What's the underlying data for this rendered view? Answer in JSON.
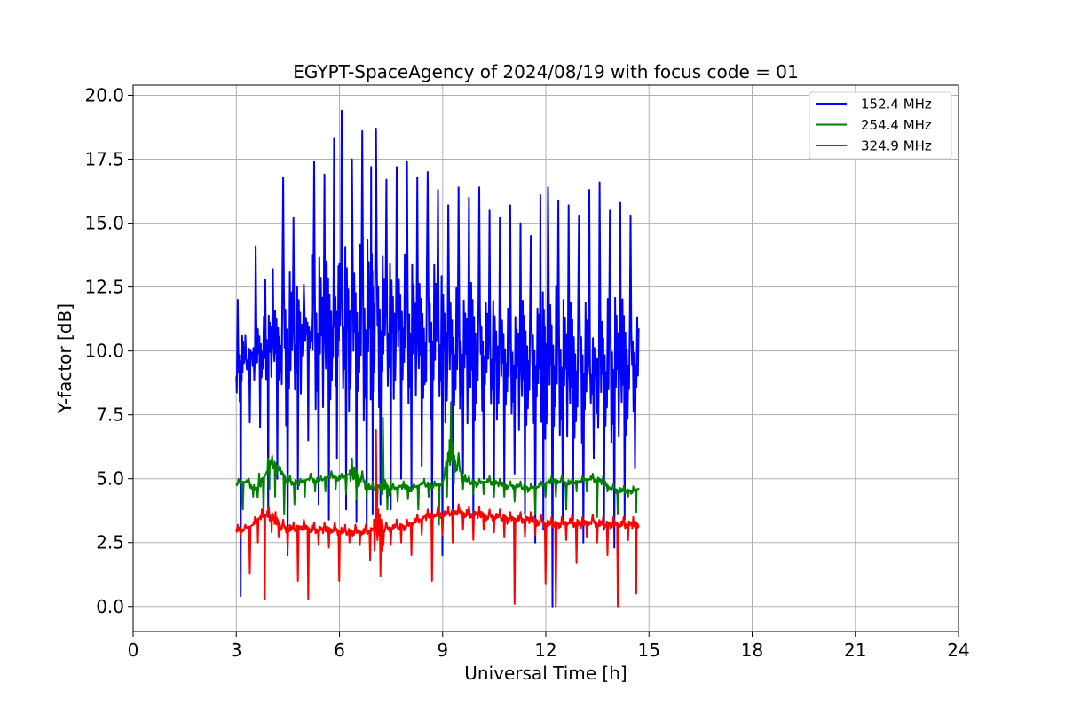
{
  "chart_data": {
    "type": "line",
    "title": "EGYPT-SpaceAgency of 2024/08/19 with focus code = 01",
    "xlabel": "Universal Time [h]",
    "ylabel": "Y-factor [dB]",
    "xlim": [
      0,
      24
    ],
    "ylim": [
      -0.98,
      20.4
    ],
    "xticks": [
      0,
      3,
      6,
      9,
      12,
      15,
      18,
      21,
      24
    ],
    "xtick_labels": [
      "0",
      "3",
      "6",
      "9",
      "12",
      "15",
      "18",
      "21",
      "24"
    ],
    "yticks": [
      0.0,
      2.5,
      5.0,
      7.5,
      10.0,
      12.5,
      15.0,
      17.5,
      20.0
    ],
    "ytick_labels": [
      "0.0",
      "2.5",
      "5.0",
      "7.5",
      "10.0",
      "12.5",
      "15.0",
      "17.5",
      "20.0"
    ],
    "grid": true,
    "legend_position": "top-right",
    "series": [
      {
        "name": "152.4 MHz",
        "color": "#0000ff",
        "x": [
          3.0,
          3.2,
          3.5,
          3.8,
          4.0,
          4.3,
          4.6,
          4.9,
          5.2,
          5.5,
          5.8,
          6.0,
          6.3,
          6.6,
          6.9,
          7.0,
          7.3,
          7.6,
          7.9,
          8.2,
          8.5,
          8.8,
          9.1,
          9.4,
          9.7,
          10.0,
          10.3,
          10.6,
          10.9,
          11.2,
          11.5,
          11.8,
          12.0,
          12.3,
          12.6,
          12.9,
          13.2,
          13.5,
          13.8,
          14.1,
          14.4,
          14.7
        ],
        "y": [
          9.0,
          9.5,
          9.8,
          10.0,
          10.3,
          10.2,
          10.0,
          10.5,
          10.8,
          10.6,
          10.9,
          11.0,
          10.8,
          10.7,
          10.9,
          11.2,
          10.6,
          10.8,
          10.9,
          10.5,
          10.3,
          10.4,
          10.0,
          9.8,
          9.9,
          10.0,
          9.7,
          9.6,
          9.5,
          9.4,
          9.6,
          9.3,
          9.5,
          9.4,
          9.3,
          9.2,
          9.1,
          9.0,
          9.2,
          9.3,
          9.4,
          9.5
        ],
        "spike_max": [
          12.0,
          10.6,
          14.1,
          12.8,
          13.2,
          16.8,
          15.2,
          12.6,
          17.4,
          16.9,
          18.3,
          19.4,
          17.5,
          18.6,
          17.2,
          18.7,
          16.7,
          17.2,
          17.4,
          16.8,
          17.0,
          16.3,
          15.7,
          16.4,
          16.0,
          16.4,
          15.5,
          15.2,
          15.7,
          15.0,
          14.5,
          16.1,
          16.4,
          15.9,
          15.7,
          15.3,
          16.3,
          16.6,
          15.5,
          15.8,
          15.3,
          15.2
        ],
        "spike_min": [
          0.4,
          7.2,
          7.0,
          3.5,
          5.0,
          2.0,
          4.6,
          6.5,
          4.0,
          3.4,
          5.8,
          3.8,
          3.3,
          3.0,
          3.6,
          4.0,
          3.8,
          5.0,
          4.5,
          5.5,
          3.6,
          2.0,
          2.9,
          5.2,
          3.3,
          5.0,
          4.5,
          4.7,
          5.2,
          3.6,
          2.5,
          3.0,
          0.0,
          3.4,
          3.4,
          2.5,
          5.8,
          3.0,
          2.3,
          3.4,
          5.4,
          4.6
        ]
      },
      {
        "name": "254.4 MHz",
        "color": "#008000",
        "x": [
          3.0,
          3.3,
          3.6,
          3.9,
          4.0,
          4.2,
          4.5,
          4.8,
          5.1,
          5.4,
          5.7,
          6.0,
          6.3,
          6.6,
          6.9,
          7.2,
          7.5,
          7.8,
          8.1,
          8.4,
          8.7,
          9.0,
          9.2,
          9.4,
          9.7,
          10.0,
          10.3,
          10.6,
          10.9,
          11.2,
          11.5,
          11.8,
          12.1,
          12.4,
          12.7,
          13.0,
          13.3,
          13.6,
          13.9,
          14.2,
          14.5,
          14.7
        ],
        "y": [
          4.8,
          4.9,
          4.5,
          5.3,
          5.6,
          5.4,
          4.9,
          4.8,
          5.0,
          4.9,
          5.1,
          5.0,
          5.2,
          5.0,
          4.6,
          4.7,
          4.6,
          4.7,
          4.6,
          4.8,
          4.7,
          4.8,
          6.2,
          5.5,
          4.9,
          4.8,
          4.9,
          4.8,
          4.7,
          4.7,
          4.6,
          4.7,
          4.9,
          4.9,
          4.8,
          4.9,
          5.0,
          4.9,
          4.6,
          4.5,
          4.5,
          4.6
        ],
        "spike_max": [
          5.0,
          5.0,
          5.2,
          5.8,
          5.9,
          5.5,
          5.1,
          5.0,
          5.2,
          5.1,
          5.3,
          5.2,
          5.8,
          5.3,
          4.9,
          7.4,
          4.8,
          4.9,
          4.8,
          5.0,
          4.9,
          5.0,
          8.0,
          6.0,
          5.1,
          5.0,
          5.1,
          5.0,
          4.9,
          4.9,
          4.8,
          4.9,
          5.1,
          5.1,
          5.0,
          5.1,
          5.2,
          5.1,
          4.8,
          4.7,
          4.7,
          4.8
        ],
        "spike_min": [
          3.8,
          4.3,
          3.5,
          4.6,
          4.3,
          3.6,
          4.0,
          4.3,
          4.5,
          4.5,
          4.6,
          4.4,
          4.2,
          4.3,
          3.8,
          3.8,
          4.1,
          4.2,
          3.8,
          4.3,
          3.2,
          4.3,
          4.8,
          4.6,
          4.4,
          4.4,
          4.3,
          4.3,
          4.1,
          4.3,
          3.6,
          4.3,
          4.3,
          3.8,
          4.5,
          4.5,
          3.5,
          4.5,
          3.6,
          4.3,
          3.7,
          3.5
        ]
      },
      {
        "name": "324.9 MHz",
        "color": "#ff0000",
        "x": [
          3.0,
          3.2,
          3.5,
          3.7,
          3.9,
          4.1,
          4.3,
          4.6,
          4.9,
          5.2,
          5.5,
          5.8,
          6.1,
          6.4,
          6.7,
          7.0,
          7.3,
          7.6,
          7.9,
          8.2,
          8.5,
          8.8,
          9.1,
          9.4,
          9.7,
          10.0,
          10.3,
          10.6,
          10.9,
          11.2,
          11.5,
          11.8,
          12.1,
          12.4,
          12.7,
          13.0,
          13.3,
          13.6,
          13.9,
          14.2,
          14.5,
          14.7
        ],
        "y": [
          3.0,
          3.0,
          3.2,
          3.5,
          3.6,
          3.4,
          3.1,
          3.0,
          3.1,
          3.0,
          3.0,
          3.0,
          2.9,
          2.9,
          2.9,
          3.0,
          3.0,
          3.1,
          3.1,
          3.3,
          3.5,
          3.6,
          3.6,
          3.7,
          3.6,
          3.6,
          3.5,
          3.5,
          3.4,
          3.4,
          3.4,
          3.3,
          3.2,
          3.2,
          3.3,
          3.2,
          3.3,
          3.2,
          3.2,
          3.2,
          3.2,
          3.2
        ],
        "spike_max": [
          3.2,
          3.2,
          3.5,
          3.8,
          3.9,
          3.7,
          3.4,
          3.3,
          3.4,
          3.3,
          3.3,
          3.3,
          3.2,
          3.2,
          3.2,
          6.9,
          3.3,
          3.4,
          3.4,
          3.6,
          3.8,
          3.9,
          3.9,
          4.0,
          3.9,
          3.9,
          3.8,
          3.8,
          3.7,
          3.7,
          3.7,
          3.6,
          3.5,
          3.5,
          3.6,
          3.5,
          3.6,
          3.5,
          3.5,
          3.5,
          3.5,
          3.5
        ],
        "spike_min": [
          2.7,
          1.3,
          2.5,
          0.3,
          2.9,
          2.7,
          2.2,
          1.0,
          0.3,
          2.4,
          2.3,
          1.0,
          2.5,
          2.4,
          1.8,
          1.2,
          2.4,
          2.5,
          2.0,
          2.8,
          1.0,
          2.8,
          2.5,
          3.0,
          2.6,
          3.0,
          2.9,
          2.7,
          0.1,
          2.7,
          2.8,
          0.9,
          0.0,
          2.6,
          1.7,
          2.7,
          2.5,
          2.0,
          0.0,
          2.6,
          0.5,
          1.5
        ]
      }
    ]
  }
}
